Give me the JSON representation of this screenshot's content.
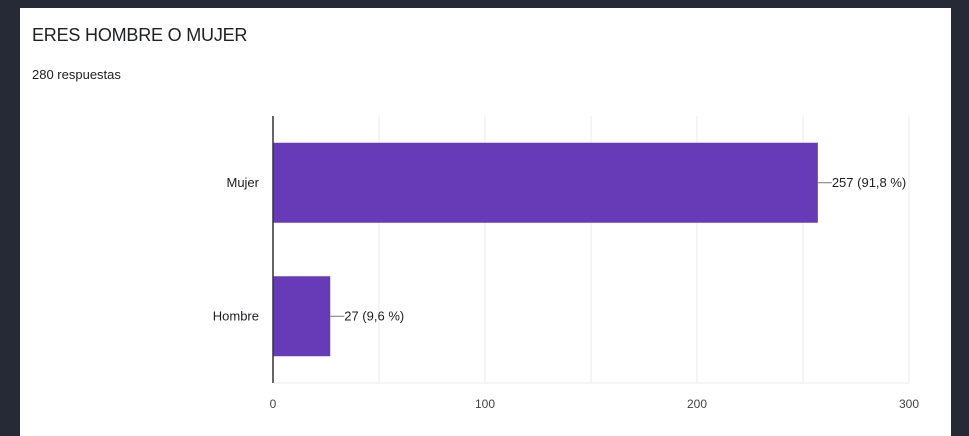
{
  "card": {
    "title": "ERES HOMBRE O MUJER",
    "subtitle": "280 respuestas"
  },
  "colors": {
    "bar": "#673ab7",
    "grid": "#ebebeb",
    "axis": "#333333",
    "background": "#ffffff",
    "frame": "#252a36"
  },
  "chart_data": {
    "type": "bar",
    "orientation": "horizontal",
    "categories": [
      "Mujer",
      "Hombre"
    ],
    "values": [
      257,
      27
    ],
    "data_labels": [
      "257 (91,8 %)",
      "27 (9,6 %)"
    ],
    "xlim": [
      0,
      300
    ],
    "x_ticks": [
      0,
      100,
      200,
      300
    ],
    "x_tick_labels": [
      "0",
      "100",
      "200",
      "300"
    ],
    "grid": true,
    "title": "ERES HOMBRE O MUJER",
    "xlabel": "",
    "ylabel": ""
  }
}
